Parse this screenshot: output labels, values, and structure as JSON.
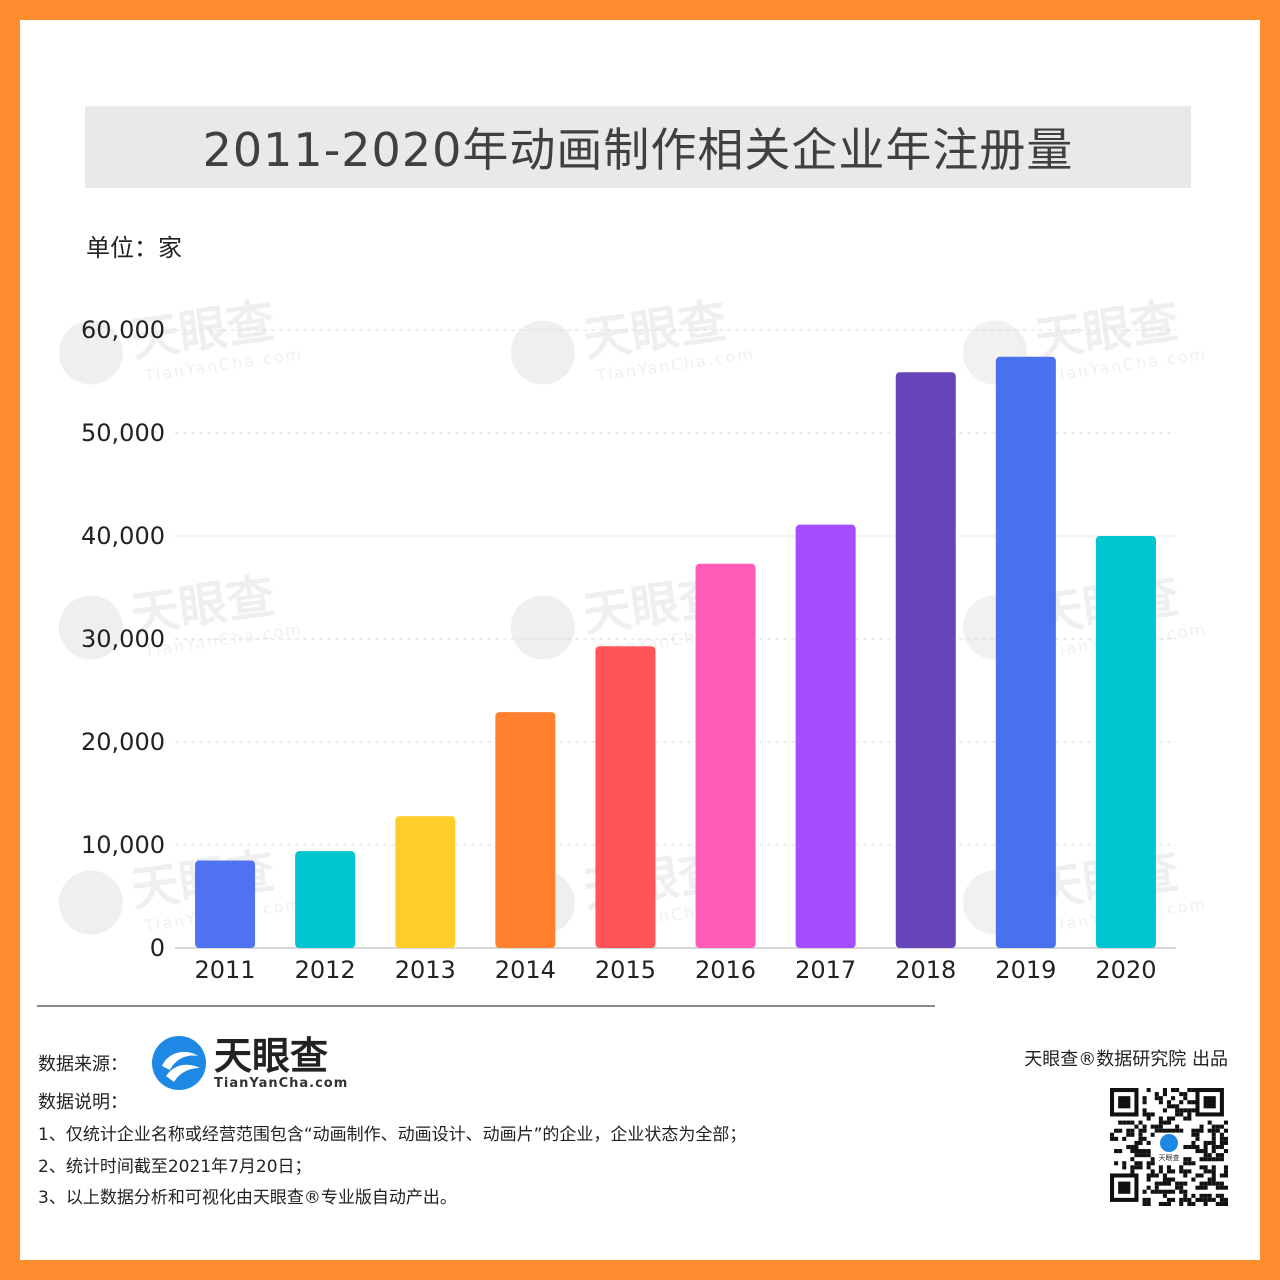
{
  "chart_data": {
    "type": "bar",
    "title": "2011-2020年动画制作相关企业年注册量",
    "unit_label": "单位：家",
    "categories": [
      "2011",
      "2012",
      "2013",
      "2014",
      "2015",
      "2016",
      "2017",
      "2018",
      "2019",
      "2020"
    ],
    "values": [
      8500,
      9400,
      12800,
      22900,
      29300,
      37300,
      41100,
      55900,
      57400,
      40000
    ],
    "colors": [
      "#4F73F0",
      "#00C4CE",
      "#FFCE2B",
      "#FF8130",
      "#FF5458",
      "#FF5CB8",
      "#A44EFF",
      "#6744B8",
      "#4A70EE",
      "#00C4CE"
    ],
    "ylim": [
      0,
      60000
    ],
    "y_ticks": [
      "0",
      "10,000",
      "20,000",
      "30,000",
      "40,000",
      "50,000",
      "60,000"
    ],
    "y_tick_values": [
      0,
      10000,
      20000,
      30000,
      40000,
      50000,
      60000
    ],
    "grid": "dashed-horizontal",
    "watermark": "天眼查 TianYanCha.com"
  },
  "footer": {
    "source_label": "数据来源：",
    "brand_name": "天眼查",
    "brand_sub": "TianYanCha.com",
    "notes_label": "数据说明：",
    "notes": [
      "1、仅统计企业名称或经营范围包含“动画制作、动画设计、动画片”的企业，企业状态为全部；",
      "2、统计时间截至2021年7月20日；",
      "3、以上数据分析和可视化由天眼查®专业版自动产出。"
    ],
    "publisher": "天眼查®数据研究院 出品",
    "qr_label": "天眼查"
  },
  "colors": {
    "frame": "#FF8C2F",
    "title_bg": "#E9E9E9",
    "brand_blue": "#1E88E5"
  }
}
